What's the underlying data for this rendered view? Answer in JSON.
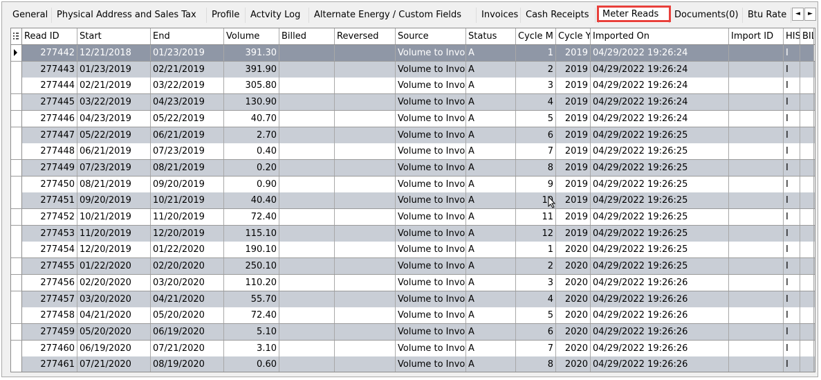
{
  "tabs": [
    {
      "label": "General"
    },
    {
      "label": "Physical Address and Sales Tax"
    },
    {
      "label": "Profile"
    },
    {
      "label": "Actvity Log"
    },
    {
      "label": "Alternate Energy / Custom Fields"
    },
    {
      "label": "Invoices"
    },
    {
      "label": "Cash Receipts"
    },
    {
      "label": "Meter Reads"
    },
    {
      "label": "Documents(0)"
    },
    {
      "label": "Btu Rate"
    }
  ],
  "active_tab": "Meter Reads",
  "tab_scroll": {
    "left": "◄",
    "right": "►"
  },
  "columns": [
    "Read ID",
    "Start",
    "End",
    "Volume",
    "Billed",
    "Reversed",
    "Source",
    "Status",
    "Cycle M",
    "Cycle Y",
    "Imported On",
    "Import ID",
    "HIS",
    "BIL"
  ],
  "rows": [
    [
      "277442",
      "12/21/2018",
      "01/23/2019",
      "391.30",
      "",
      "",
      "Volume to Invoice",
      "A",
      "1",
      "2019",
      "04/29/2022 19:26:24",
      "",
      "I",
      ""
    ],
    [
      "277443",
      "01/23/2019",
      "02/21/2019",
      "391.90",
      "",
      "",
      "Volume to Invoice",
      "A",
      "2",
      "2019",
      "04/29/2022 19:26:24",
      "",
      "I",
      ""
    ],
    [
      "277444",
      "02/21/2019",
      "03/22/2019",
      "305.80",
      "",
      "",
      "Volume to Invoice",
      "A",
      "3",
      "2019",
      "04/29/2022 19:26:24",
      "",
      "I",
      ""
    ],
    [
      "277445",
      "03/22/2019",
      "04/23/2019",
      "130.90",
      "",
      "",
      "Volume to Invoice",
      "A",
      "4",
      "2019",
      "04/29/2022 19:26:24",
      "",
      "I",
      ""
    ],
    [
      "277446",
      "04/23/2019",
      "05/22/2019",
      "40.70",
      "",
      "",
      "Volume to Invoice",
      "A",
      "5",
      "2019",
      "04/29/2022 19:26:24",
      "",
      "I",
      ""
    ],
    [
      "277447",
      "05/22/2019",
      "06/21/2019",
      "2.70",
      "",
      "",
      "Volume to Invoice",
      "A",
      "6",
      "2019",
      "04/29/2022 19:26:25",
      "",
      "I",
      ""
    ],
    [
      "277448",
      "06/21/2019",
      "07/23/2019",
      "0.40",
      "",
      "",
      "Volume to Invoice",
      "A",
      "7",
      "2019",
      "04/29/2022 19:26:25",
      "",
      "I",
      ""
    ],
    [
      "277449",
      "07/23/2019",
      "08/21/2019",
      "0.20",
      "",
      "",
      "Volume to Invoice",
      "A",
      "8",
      "2019",
      "04/29/2022 19:26:25",
      "",
      "I",
      ""
    ],
    [
      "277450",
      "08/21/2019",
      "09/20/2019",
      "0.90",
      "",
      "",
      "Volume to Invoice",
      "A",
      "9",
      "2019",
      "04/29/2022 19:26:25",
      "",
      "I",
      ""
    ],
    [
      "277451",
      "09/20/2019",
      "10/21/2019",
      "40.40",
      "",
      "",
      "Volume to Invoice",
      "A",
      "10",
      "2019",
      "04/29/2022 19:26:25",
      "",
      "I",
      ""
    ],
    [
      "277452",
      "10/21/2019",
      "11/20/2019",
      "72.40",
      "",
      "",
      "Volume to Invoice",
      "A",
      "11",
      "2019",
      "04/29/2022 19:26:25",
      "",
      "I",
      ""
    ],
    [
      "277453",
      "11/20/2019",
      "12/20/2019",
      "115.10",
      "",
      "",
      "Volume to Invoice",
      "A",
      "12",
      "2019",
      "04/29/2022 19:26:25",
      "",
      "I",
      ""
    ],
    [
      "277454",
      "12/20/2019",
      "01/22/2020",
      "190.10",
      "",
      "",
      "Volume to Invoice",
      "A",
      "1",
      "2020",
      "04/29/2022 19:26:25",
      "",
      "I",
      ""
    ],
    [
      "277455",
      "01/22/2020",
      "02/20/2020",
      "250.10",
      "",
      "",
      "Volume to Invoice",
      "A",
      "2",
      "2020",
      "04/29/2022 19:26:25",
      "",
      "I",
      ""
    ],
    [
      "277456",
      "02/20/2020",
      "03/20/2020",
      "110.20",
      "",
      "",
      "Volume to Invoice",
      "A",
      "3",
      "2020",
      "04/29/2022 19:26:26",
      "",
      "I",
      ""
    ],
    [
      "277457",
      "03/20/2020",
      "04/21/2020",
      "55.70",
      "",
      "",
      "Volume to Invoice",
      "A",
      "4",
      "2020",
      "04/29/2022 19:26:26",
      "",
      "I",
      ""
    ],
    [
      "277458",
      "04/21/2020",
      "05/20/2020",
      "72.40",
      "",
      "",
      "Volume to Invoice",
      "A",
      "5",
      "2020",
      "04/29/2022 19:26:26",
      "",
      "I",
      ""
    ],
    [
      "277459",
      "05/20/2020",
      "06/19/2020",
      "5.10",
      "",
      "",
      "Volume to Invoice",
      "A",
      "6",
      "2020",
      "04/29/2022 19:26:26",
      "",
      "I",
      ""
    ],
    [
      "277460",
      "06/19/2020",
      "07/21/2020",
      "3.10",
      "",
      "",
      "Volume to Invoice",
      "A",
      "7",
      "2020",
      "04/29/2022 19:26:26",
      "",
      "I",
      ""
    ],
    [
      "277461",
      "07/21/2020",
      "08/19/2020",
      "0.60",
      "",
      "",
      "Volume to Invoice",
      "A",
      "8",
      "2020",
      "04/29/2022 19:26:26",
      "",
      "I",
      ""
    ]
  ],
  "selected_row": 0,
  "colors": {
    "odd_row": "#c9ced6",
    "selected_row": "#8f97a6",
    "tab_highlight": "#e8403b"
  }
}
